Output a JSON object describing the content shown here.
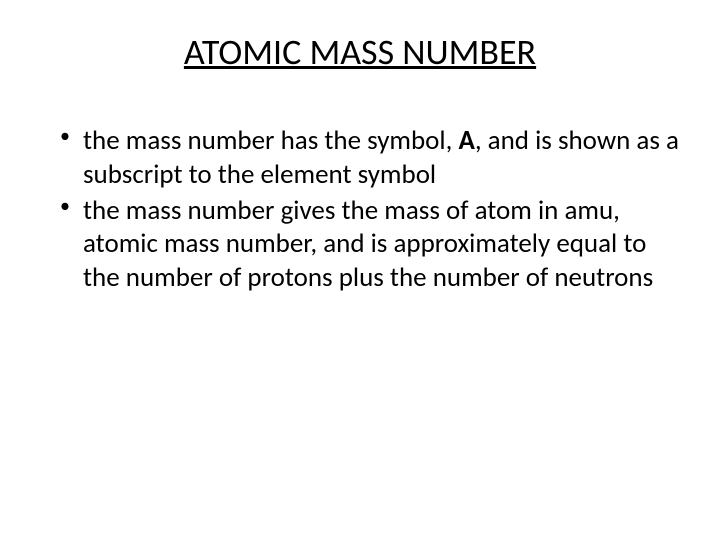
{
  "slide": {
    "title": "ATOMIC MASS NUMBER",
    "bullets": [
      {
        "text_before": "the mass number has the symbol, ",
        "bold_letter": "A",
        "text_after": ", and is shown as a subscript to the element symbol"
      },
      {
        "text_before": "the mass number gives the mass of atom in amu, atomic mass number, and is approximately equal to the number of protons plus the number of neutrons",
        "bold_letter": "",
        "text_after": ""
      }
    ],
    "colors": {
      "background": "#ffffff",
      "text": "#000000"
    },
    "typography": {
      "title_fontsize": 36,
      "body_fontsize": 27,
      "font_family": "Calibri"
    }
  }
}
